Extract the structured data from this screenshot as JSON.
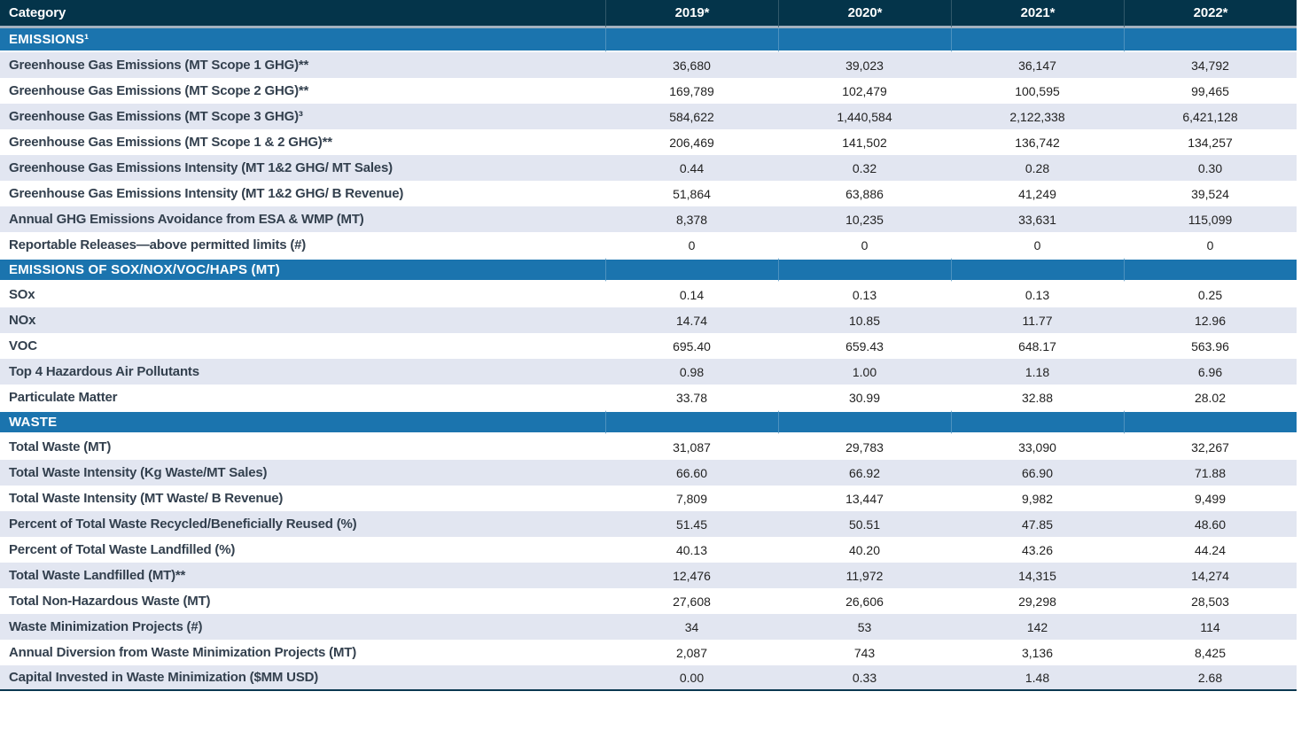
{
  "table": {
    "columns": [
      "Category",
      "2019*",
      "2020*",
      "2021*",
      "2022*"
    ],
    "sections": [
      {
        "title": "EMISSIONS¹",
        "first_row_shaded": true,
        "rows": [
          {
            "label": "Greenhouse Gas Emissions (MT Scope 1 GHG)**",
            "values": [
              "36,680",
              "39,023",
              "36,147",
              "34,792"
            ]
          },
          {
            "label": "Greenhouse Gas Emissions (MT Scope 2 GHG)**",
            "values": [
              "169,789",
              "102,479",
              "100,595",
              "99,465"
            ]
          },
          {
            "label": "Greenhouse Gas Emissions (MT Scope 3 GHG)³",
            "values": [
              "584,622",
              "1,440,584",
              "2,122,338",
              "6,421,128"
            ]
          },
          {
            "label": "Greenhouse Gas Emissions (MT Scope 1 & 2 GHG)**",
            "values": [
              "206,469",
              "141,502",
              "136,742",
              "134,257"
            ]
          },
          {
            "label": "Greenhouse Gas Emissions Intensity (MT 1&2 GHG/ MT Sales)",
            "values": [
              "0.44",
              "0.32",
              "0.28",
              "0.30"
            ]
          },
          {
            "label": "Greenhouse Gas Emissions Intensity (MT 1&2 GHG/ B Revenue)",
            "values": [
              "51,864",
              "63,886",
              "41,249",
              "39,524"
            ]
          },
          {
            "label": "Annual GHG Emissions Avoidance from ESA & WMP (MT)",
            "values": [
              "8,378",
              "10,235",
              "33,631",
              "115,099"
            ]
          },
          {
            "label": "Reportable Releases—above permitted limits (#)",
            "values": [
              "0",
              "0",
              "0",
              "0"
            ]
          }
        ]
      },
      {
        "title": "EMISSIONS OF SOX/NOX/VOC/HAPS (MT)",
        "first_row_shaded": false,
        "rows": [
          {
            "label": "SOx",
            "values": [
              "0.14",
              "0.13",
              "0.13",
              "0.25"
            ]
          },
          {
            "label": "NOx",
            "values": [
              "14.74",
              "10.85",
              "11.77",
              "12.96"
            ]
          },
          {
            "label": "VOC",
            "values": [
              "695.40",
              "659.43",
              "648.17",
              "563.96"
            ]
          },
          {
            "label": "Top 4 Hazardous Air Pollutants",
            "values": [
              "0.98",
              "1.00",
              "1.18",
              "6.96"
            ]
          },
          {
            "label": "Particulate Matter",
            "values": [
              "33.78",
              "30.99",
              "32.88",
              "28.02"
            ]
          }
        ]
      },
      {
        "title": "WASTE",
        "first_row_shaded": false,
        "rows": [
          {
            "label": "Total Waste (MT)",
            "values": [
              "31,087",
              "29,783",
              "33,090",
              "32,267"
            ]
          },
          {
            "label": "Total Waste Intensity (Kg Waste/MT Sales)",
            "values": [
              "66.60",
              "66.92",
              "66.90",
              "71.88"
            ]
          },
          {
            "label": "Total Waste Intensity (MT Waste/ B Revenue)",
            "values": [
              "7,809",
              "13,447",
              "9,982",
              "9,499"
            ]
          },
          {
            "label": "Percent of Total Waste Recycled/Beneficially Reused (%)",
            "values": [
              "51.45",
              "50.51",
              "47.85",
              "48.60"
            ]
          },
          {
            "label": "Percent of Total Waste Landfilled (%)",
            "values": [
              "40.13",
              "40.20",
              "43.26",
              "44.24"
            ]
          },
          {
            "label": "Total Waste Landfilled (MT)**",
            "values": [
              "12,476",
              "11,972",
              "14,315",
              "14,274"
            ]
          },
          {
            "label": "Total Non-Hazardous Waste (MT)",
            "values": [
              "27,608",
              "26,606",
              "29,298",
              "28,503"
            ]
          },
          {
            "label": "Waste Minimization Projects (#)",
            "values": [
              "34",
              "53",
              "142",
              "114"
            ]
          },
          {
            "label": "Annual Diversion from Waste Minimization Projects (MT)",
            "values": [
              "2,087",
              "743",
              "3,136",
              "8,425"
            ]
          },
          {
            "label": "Capital Invested in Waste Minimization ($MM USD)",
            "values": [
              "0.00",
              "0.33",
              "1.48",
              "2.68"
            ]
          }
        ]
      }
    ]
  },
  "colors": {
    "header_bg": "#04344a",
    "section_bg": "#1b74ae",
    "shaded_row_bg": "#e2e6f1",
    "label_text": "#33404e",
    "value_text": "#222222",
    "header_separator": "#a3b2c0",
    "bottom_border": "#0a3850"
  }
}
